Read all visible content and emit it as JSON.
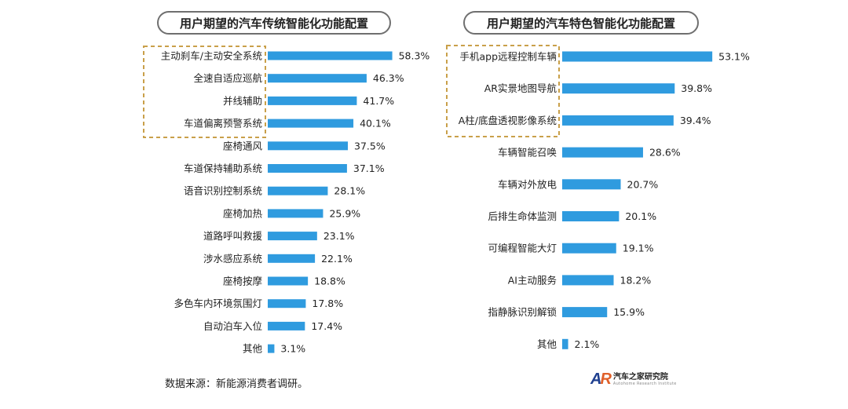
{
  "chart_data": [
    {
      "type": "bar",
      "orientation": "horizontal",
      "title": "用户期望的汽车传统智能化功能配置",
      "categories": [
        "主动刹车/主动安全系统",
        "全速自适应巡航",
        "并线辅助",
        "车道偏离预警系统",
        "座椅通风",
        "车道保持辅助系统",
        "语音识别控制系统",
        "座椅加热",
        "道路呼叫救援",
        "涉水感应系统",
        "座椅按摩",
        "多色车内环境氛围灯",
        "自动泊车入位",
        "其他"
      ],
      "values": [
        58.3,
        46.3,
        41.7,
        40.1,
        37.5,
        37.1,
        28.1,
        25.9,
        23.1,
        22.1,
        18.8,
        17.8,
        17.4,
        3.1
      ],
      "labels": [
        "58.3%",
        "46.3%",
        "41.7%",
        "40.1%",
        "37.5%",
        "37.1%",
        "28.1%",
        "25.9%",
        "23.1%",
        "22.1%",
        "18.8%",
        "17.8%",
        "17.4%",
        "3.1%"
      ],
      "unit": "%",
      "highlighted_top": 4,
      "color": "#2f9bdf",
      "highlight_color": "#c9a04a"
    },
    {
      "type": "bar",
      "orientation": "horizontal",
      "title": "用户期望的汽车特色智能化功能配置",
      "categories": [
        "手机app远程控制车辆",
        "AR实景地图导航",
        "A柱/底盘透视影像系统",
        "车辆智能召唤",
        "车辆对外放电",
        "后排生命体监测",
        "可编程智能大灯",
        "AI主动服务",
        "指静脉识别解锁",
        "其他"
      ],
      "values": [
        53.1,
        39.8,
        39.4,
        28.6,
        20.7,
        20.1,
        19.1,
        18.2,
        15.9,
        2.1
      ],
      "labels": [
        "53.1%",
        "39.8%",
        "39.4%",
        "28.6%",
        "20.7%",
        "20.1%",
        "19.1%",
        "18.2%",
        "15.9%",
        "2.1%"
      ],
      "unit": "%",
      "highlighted_top": 3,
      "color": "#2f9bdf",
      "highlight_color": "#c9a04a"
    }
  ],
  "footer": {
    "source": "数据来源：新能源消费者调研。"
  },
  "logo": {
    "mark_a": "A",
    "mark_r": "R",
    "name": "汽车之家研究院",
    "subtitle": "Autohome Research Institute"
  }
}
